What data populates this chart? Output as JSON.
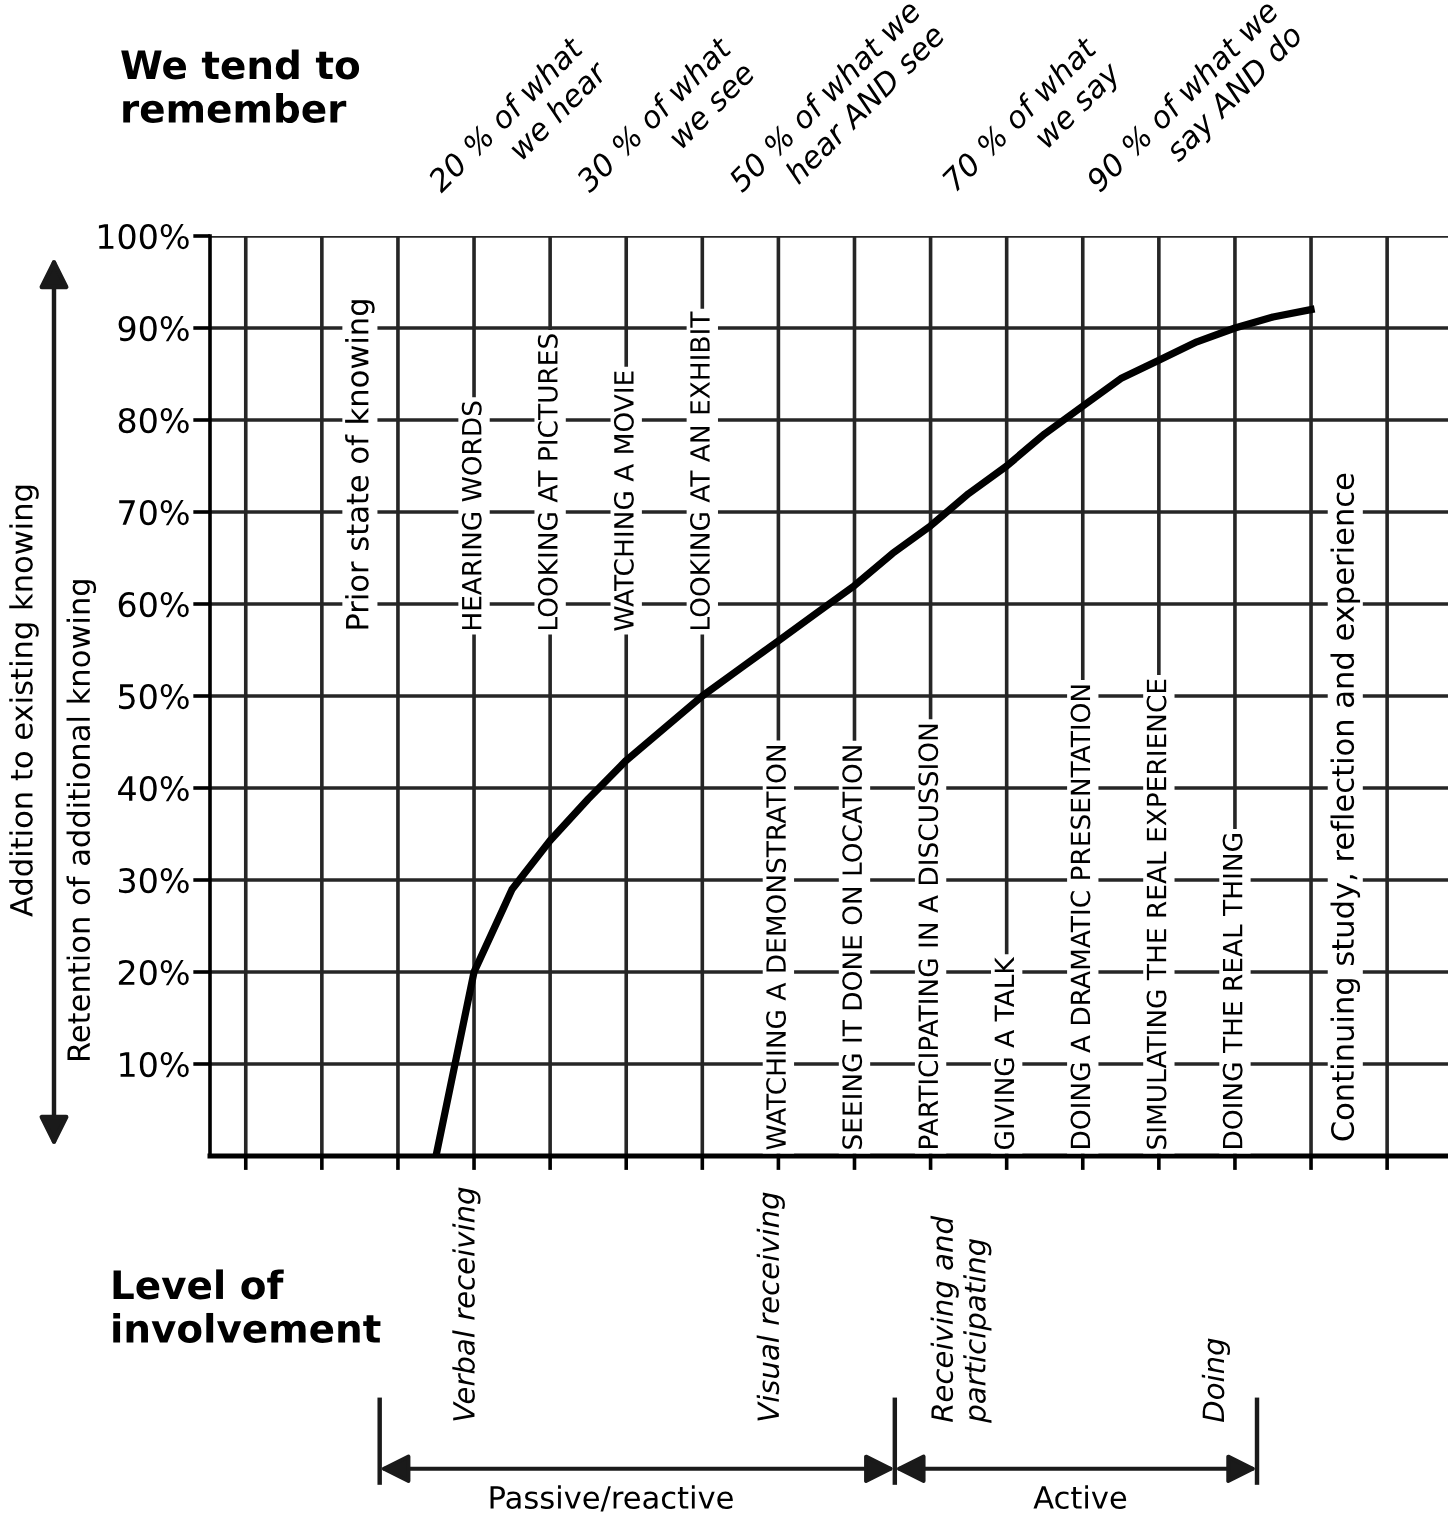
{
  "chart_data": {
    "type": "line",
    "ylabel": "Retention of additional knowing",
    "categories": [
      null,
      null,
      null,
      null,
      null,
      null,
      null,
      null,
      null,
      null,
      null,
      null,
      null,
      null,
      null,
      null,
      null,
      null,
      null,
      null,
      null,
      null,
      null,
      null,
      null,
      null,
      null,
      null,
      null,
      null,
      null,
      null,
      null
    ],
    "series": [
      {
        "color": "#000000",
        "values": [
          null,
          null,
          null,
          null,
          null,
          null,
          0,
          20,
          29,
          34.3,
          38.8,
          43,
          46.5,
          50,
          53,
          56,
          59,
          62,
          65.5,
          68.5,
          72,
          75,
          78.5,
          81.5,
          84.5,
          86.5,
          88.5,
          90,
          91.2,
          92,
          null,
          null,
          null
        ]
      }
    ],
    "ylim": [
      0,
      100
    ],
    "yticks": [
      {
        "value": 10,
        "label": "10%"
      },
      {
        "value": 20,
        "label": "20%"
      },
      {
        "value": 30,
        "label": "30%"
      },
      {
        "value": 40,
        "label": "40%"
      },
      {
        "value": 50,
        "label": "50%"
      },
      {
        "value": 60,
        "label": "60%"
      },
      {
        "value": 70,
        "label": "70%"
      },
      {
        "value": 80,
        "label": "80%"
      },
      {
        "value": 90,
        "label": "90%"
      },
      {
        "value": 100,
        "label": "100%"
      }
    ],
    "tick_labels": "y",
    "grid": true,
    "legend": false,
    "marker": "none",
    "line_style": "solid",
    "annotations": [
      "We tend to\nremember",
      "20 % of what\nwe hear",
      "30 % of what\nwe see",
      "50 % of what we\nhear AND see",
      "70 % of what\nwe say",
      "90 % of what we\nsay AND do",
      "Addition to existing knowing",
      "Prior state of knowing",
      "HEARING WORDS",
      "LOOKING AT PICTURES",
      "WATCHING A MOVIE",
      "LOOKING AT AN EXHIBIT",
      "WATCHING A DEMONSTRATION",
      "SEEING IT DONE ON LOCATION",
      "PARTICIPATING IN A DISCUSSION",
      "GIVING A TALK",
      "DOING A DRAMATIC PRESENTATION",
      "SIMULATING THE REAL EXPERIENCE",
      "DOING THE REAL THING",
      "Continuing study, reflection and experience",
      "Level of\ninvolvement",
      "Verbal receiving",
      "Visual receiving",
      "Receiving and\nparticipating",
      "Doing",
      "Passive/reactive",
      "Active"
    ]
  }
}
